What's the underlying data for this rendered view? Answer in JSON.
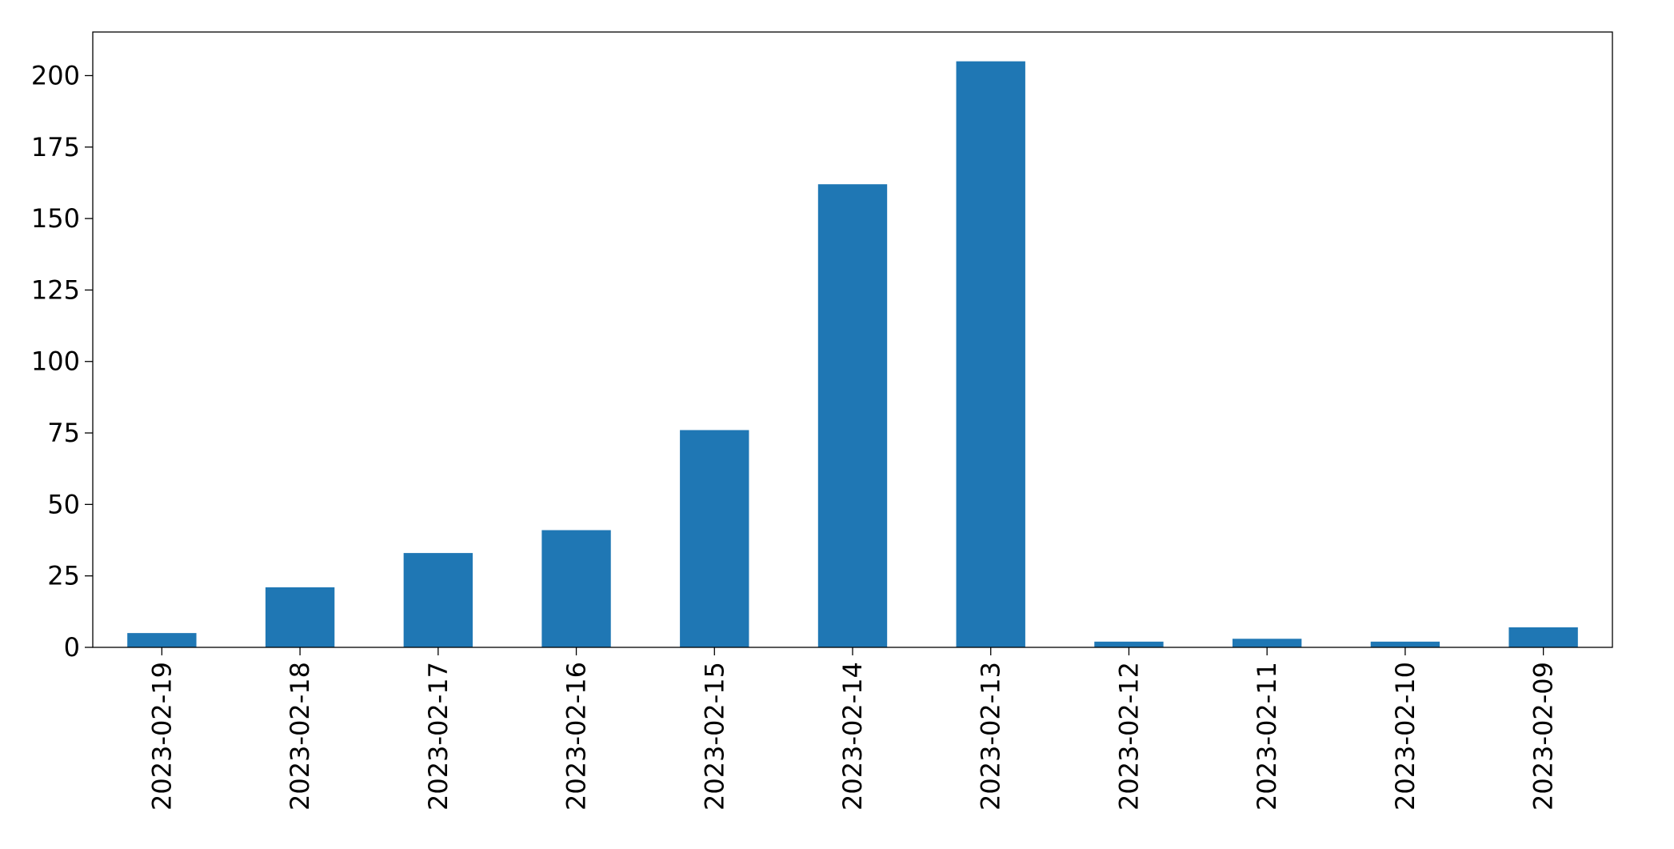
{
  "chart_data": {
    "type": "bar",
    "categories": [
      "2023-02-19",
      "2023-02-18",
      "2023-02-17",
      "2023-02-16",
      "2023-02-15",
      "2023-02-14",
      "2023-02-13",
      "2023-02-12",
      "2023-02-11",
      "2023-02-10",
      "2023-02-09"
    ],
    "values": [
      5,
      21,
      33,
      41,
      76,
      162,
      205,
      2,
      3,
      2,
      7
    ],
    "color": "#1f77b4",
    "ylim": [
      0,
      215.25
    ],
    "yticks": [
      0,
      25,
      50,
      75,
      100,
      125,
      150,
      175,
      200
    ],
    "grid": false
  }
}
